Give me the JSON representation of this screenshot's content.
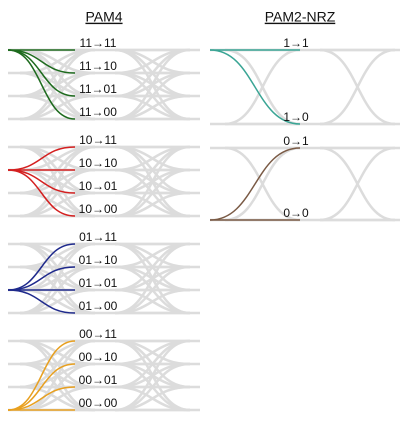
{
  "pam4": {
    "title": "PAM4",
    "groups": [
      {
        "color": "#1e6b1e",
        "transitions": [
          "11→11",
          "11→10",
          "11→01",
          "11→00"
        ]
      },
      {
        "color": "#d42020",
        "transitions": [
          "10→11",
          "10→10",
          "10→01",
          "10→00"
        ]
      },
      {
        "color": "#1f2a8c",
        "transitions": [
          "01→11",
          "01→10",
          "01→01",
          "01→00"
        ]
      },
      {
        "color": "#e8a020",
        "transitions": [
          "00→11",
          "00→10",
          "00→01",
          "00→00"
        ]
      }
    ]
  },
  "nrz": {
    "title": "PAM2-NRZ",
    "groups": [
      {
        "color": "#3aa595",
        "transitions": [
          "1→1",
          "1→0"
        ]
      },
      {
        "color": "#7a5a45",
        "transitions": [
          "0→1",
          "0→0"
        ]
      }
    ]
  }
}
